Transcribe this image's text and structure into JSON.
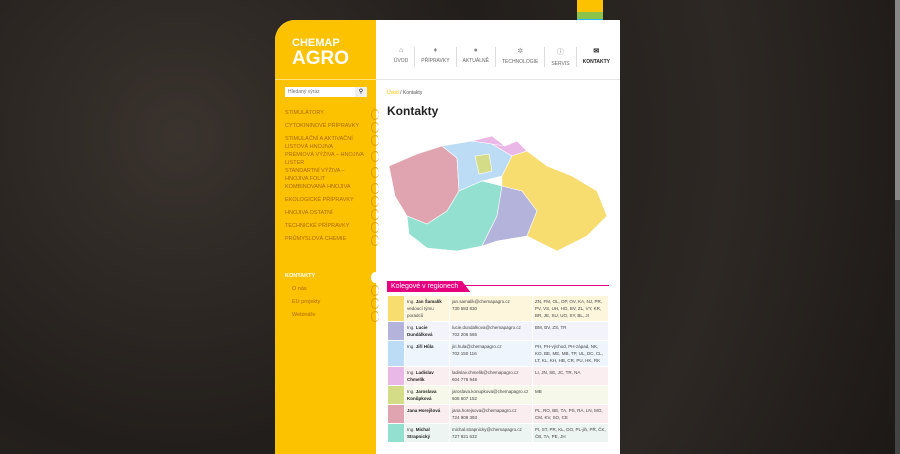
{
  "logo": {
    "line1": "CHEMAP",
    "line2": "AGRO"
  },
  "search": {
    "placeholder": "Hledaný výraz",
    "icon": "search-icon"
  },
  "nav": [
    {
      "label": "ÚVOD",
      "icon": "home-icon",
      "glyph": "⌂"
    },
    {
      "label": "PŘÍPRAVKY",
      "icon": "drop-icon",
      "glyph": "♦"
    },
    {
      "label": "AKTUÁLNĚ",
      "icon": "comment-icon",
      "glyph": "●"
    },
    {
      "label": "TECHNOLOGIE",
      "icon": "gear-icon",
      "glyph": "✲"
    },
    {
      "label": "SERVIS",
      "icon": "info-icon",
      "glyph": "ⓘ"
    },
    {
      "label": "KONTAKTY",
      "icon": "envelope-icon",
      "glyph": "✉"
    }
  ],
  "menu": [
    "STIMULÁTORY",
    "CYTOKININOVÉ PŘÍPRAVKY",
    "STIMULAČNÍ A AKTIVAČNÍ LISTOVÁ HNOJIVA",
    "PRÉMIOVÁ VÝŽIVA – HNOJIVA LISTER",
    "STANDARTNÍ VÝŽIVA – HNOJIVA FOLIT",
    "KOMBINOVANÁ HNOJIVA",
    "EKOLOGICKÉ PŘÍPRAVKY",
    "HNOJIVA OSTATNÍ",
    "TECHNICKÉ PŘÍPRAVKY",
    "PRŮMYSLOVÁ CHEMIE"
  ],
  "menu_active": "KONTAKTY",
  "submenu": [
    "O nás",
    "EU projekty",
    "Webináře"
  ],
  "breadcrumb": {
    "home": "Úvod",
    "sep": " / ",
    "current": "Kontakty"
  },
  "title": "Kontakty",
  "section": "Kolegové v regionech",
  "rows": [
    {
      "color": "#f7dc6f",
      "bg": "#fdf6dc",
      "title": "Ing.",
      "name": "Jan Šamalík",
      "role": "vedoucí týmu poradců",
      "email": "jan.samalik@chemapagro.cz",
      "phone": "730 583 830",
      "regions": "ZN, FM, OL, OP, OV, KA, NJ, PR, PV, VS, UH, HO, BV, ZL, VY, KR, BR, JE, SU, UO, SY, BL, JI"
    },
    {
      "color": "#b3b3dc",
      "bg": "#f3f3fb",
      "title": "Ing.",
      "name": "Lucie Dundálková",
      "role": "",
      "email": "lucie.dundalkova@chemapagro.cz",
      "phone": "702 206 565",
      "regions": "BM, BV, ZS, TR"
    },
    {
      "color": "#bcdcf5",
      "bg": "#eef5fc",
      "title": "Ing.",
      "name": "Jiří Hůla",
      "role": "",
      "email": "jiri.hula@chemapagro.cz",
      "phone": "702 150 116",
      "regions": "PH, PH-východ, PH-západ, NK, KO, BE, ME, MB, TP, UL, DC, CL, LT, KL, KH, HB, CR, PU, HK, RK"
    },
    {
      "color": "#eab8e6",
      "bg": "#fbeef0",
      "title": "Ing.",
      "name": "Ladislav Chmelík",
      "role": "",
      "email": "ladislav.chmelik@chemapagro.cz",
      "phone": "604 776 948",
      "regions": "LI, JN, SE, JC, TR, NA"
    },
    {
      "color": "#d4dc88",
      "bg": "#f6f8e9",
      "title": "Ing.",
      "name": "Jaroslava Konůpková",
      "role": "",
      "email": "jaroslava.konupkova@chemapagro.cz",
      "phone": "606 607 152",
      "regions": "MB"
    },
    {
      "color": "#e0a4b0",
      "bg": "#faedf0",
      "title": "",
      "name": "Jana Horejšová",
      "role": "",
      "email": "jana.horejsova@chemapagro.cz",
      "phone": "724 909 393",
      "regions": "PL, RO, BE, TA, PS, RA, LN, MO, CM, KV, SO, CE"
    },
    {
      "color": "#93e0d0",
      "bg": "#edf5f3",
      "title": "Ing.",
      "name": "Michal Strapnický",
      "role": "",
      "email": "michal.strapnicky@chemapagro.cz",
      "phone": "727 921 632",
      "regions": "PI, ST, PR, KL, DO, PL-jih, PŘ, ČK, ČB, TA, PE, JH"
    }
  ]
}
